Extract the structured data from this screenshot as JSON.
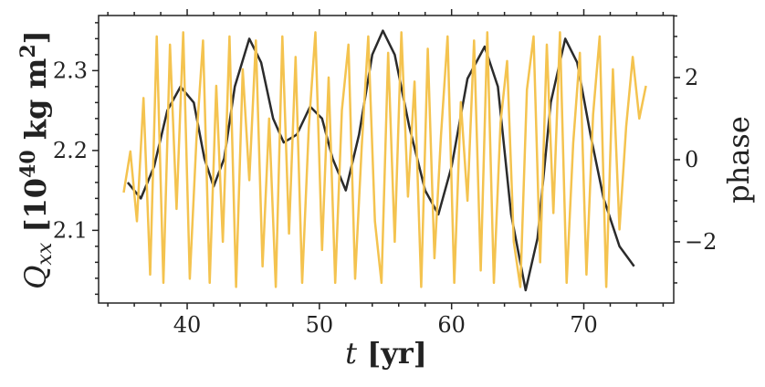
{
  "chart_data": {
    "type": "line",
    "xlabel": [
      "t",
      " [yr]"
    ],
    "ylabel": [
      "Q",
      "xx",
      " [10",
      "40",
      " kg m",
      "2",
      "]"
    ],
    "y2label": "phase",
    "xlim": [
      33.3,
      76.8
    ],
    "xticks": [
      40,
      50,
      60,
      70
    ],
    "xminorticks": [
      34,
      36,
      38,
      42,
      44,
      46,
      48,
      52,
      54,
      56,
      58,
      62,
      64,
      66,
      68,
      72,
      74,
      76
    ],
    "ylim": [
      2.009,
      2.369
    ],
    "yticks": [
      2.1,
      2.2,
      2.3
    ],
    "yminorticks": [
      2.02,
      2.04,
      2.06,
      2.08,
      2.12,
      2.14,
      2.16,
      2.18,
      2.22,
      2.24,
      2.26,
      2.28,
      2.32,
      2.34,
      2.36
    ],
    "y2lim": [
      -3.49,
      3.51
    ],
    "y2ticks": [
      {
        "value": -2,
        "label": "−2"
      },
      0,
      2
    ],
    "y2minorticks": [
      -3,
      -2.5,
      -1.5,
      -1,
      -0.5,
      0.5,
      1,
      1.5,
      2.5,
      3,
      3.5
    ],
    "series": [
      {
        "color": "#2b2b2b",
        "x": [
          35.5,
          36.5,
          37.5,
          38.5,
          39.5,
          40.5,
          41.3,
          42,
          42.8,
          43.6,
          44.7,
          45.6,
          46.5,
          47.3,
          48.3,
          49.3,
          50.2,
          51,
          52,
          53,
          54,
          54.8,
          55.7,
          56.8,
          58,
          59,
          60,
          61.2,
          62.5,
          63.5,
          64.5,
          65.6,
          66.5,
          67.5,
          68.6,
          69.5,
          70.5,
          71.5,
          72.7,
          73.8
        ],
        "values": [
          2.16,
          2.14,
          2.18,
          2.25,
          2.28,
          2.26,
          2.19,
          2.155,
          2.19,
          2.28,
          2.34,
          2.31,
          2.24,
          2.21,
          2.22,
          2.255,
          2.24,
          2.19,
          2.15,
          2.22,
          2.32,
          2.35,
          2.32,
          2.23,
          2.15,
          2.12,
          2.18,
          2.29,
          2.33,
          2.28,
          2.12,
          2.025,
          2.09,
          2.26,
          2.34,
          2.31,
          2.22,
          2.14,
          2.08,
          2.055
        ]
      },
      {
        "color": "#f4c34f",
        "axis": "y2",
        "x": [
          35.2,
          35.7,
          36.2,
          36.7,
          37.2,
          37.7,
          38.2,
          38.7,
          39.2,
          39.7,
          40.2,
          40.7,
          41.2,
          41.7,
          42.2,
          42.7,
          43.2,
          43.7,
          44.2,
          44.7,
          45.2,
          45.7,
          46.2,
          46.7,
          47.2,
          47.7,
          48.2,
          48.7,
          49.2,
          49.7,
          50.2,
          50.7,
          51.2,
          51.7,
          52.2,
          52.7,
          53.2,
          53.7,
          54.2,
          54.7,
          55.2,
          55.7,
          56.2,
          56.7,
          57.2,
          57.7,
          58.2,
          58.7,
          59.2,
          59.7,
          60.2,
          60.7,
          61.2,
          61.7,
          62.2,
          62.7,
          63.2,
          63.7,
          64.2,
          64.7,
          65.2,
          65.7,
          66.2,
          66.7,
          67.2,
          67.7,
          68.2,
          68.7,
          69.2,
          69.7,
          70.2,
          70.7,
          71.2,
          71.7,
          72.2,
          72.7,
          73.2,
          73.7,
          74.2,
          74.7
        ],
        "values": [
          -0.8,
          0.2,
          -1.5,
          1.5,
          -2.8,
          3.0,
          -3.0,
          2.8,
          -1.2,
          3.1,
          -2.9,
          0.5,
          2.9,
          -3.0,
          1.8,
          -2.0,
          3.0,
          -3.1,
          2.2,
          -0.5,
          2.9,
          -2.6,
          1.0,
          -3.1,
          3.0,
          -1.8,
          2.5,
          -3.0,
          0.8,
          3.1,
          -2.2,
          2.0,
          -3.0,
          1.2,
          2.8,
          -2.9,
          0.3,
          3.0,
          -1.5,
          -3.0,
          2.6,
          -2.0,
          3.1,
          -0.9,
          1.9,
          -3.1,
          2.7,
          -2.4,
          0.6,
          3.0,
          -3.0,
          1.4,
          -1.0,
          2.9,
          -2.7,
          3.1,
          -3.0,
          0.9,
          2.4,
          -2.0,
          -3.1,
          1.7,
          3.0,
          -2.5,
          2.8,
          -1.3,
          3.1,
          -3.0,
          0.4,
          2.6,
          -2.8,
          1.1,
          3.0,
          -3.1,
          2.2,
          -1.7,
          0.8,
          2.5,
          1.0,
          1.8
        ]
      }
    ]
  }
}
